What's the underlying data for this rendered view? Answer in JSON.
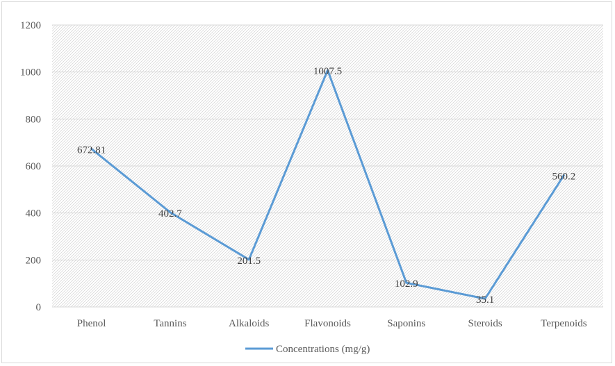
{
  "chart_data": {
    "type": "line",
    "categories": [
      "Phenol",
      "Tannins",
      "Alkaloids",
      "Flavonoids",
      "Saponins",
      "Steroids",
      "Terpenoids"
    ],
    "series": [
      {
        "name": "Concentrations (mg/g)",
        "values": [
          672.81,
          402.7,
          201.5,
          1007.5,
          102.9,
          35.1,
          560.2
        ],
        "labels": [
          "672.81",
          "402.7",
          "201.5",
          "1007.5",
          "102.9",
          "35.1",
          "560.2"
        ],
        "color": "#5b9bd5"
      }
    ],
    "ylim": [
      0,
      1200
    ],
    "yticks": [
      "0",
      "200",
      "400",
      "600",
      "800",
      "1000",
      "1200"
    ],
    "grid": true,
    "plot_fill": "diagonal-hatch",
    "legend": "bottom-center",
    "title": "",
    "xlabel": "",
    "ylabel": ""
  }
}
